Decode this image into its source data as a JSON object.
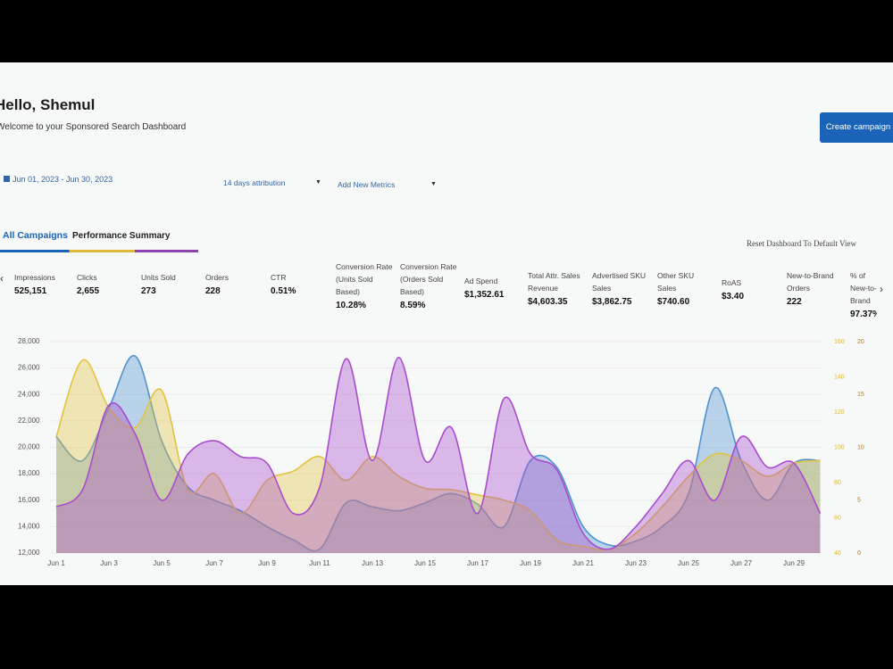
{
  "header": {
    "greeting": "Hello, Shemul",
    "subtitle": "Welcome to your Sponsored Search Dashboard",
    "button": "Create campaign"
  },
  "filters": {
    "date_range": "Jun 01, 2023 - Jun 30, 2023",
    "attribution": "14 days attribution",
    "add_metrics": "Add New Metrics"
  },
  "tabs": {
    "all_campaigns": "All Campaigns",
    "performance_summary": "Performance Summary",
    "reset": "Reset Dashboard To Default View"
  },
  "metrics": [
    {
      "label": "Impressions",
      "value": "525,151"
    },
    {
      "label": "Clicks",
      "value": "2,655"
    },
    {
      "label": "Units Sold",
      "value": "273"
    },
    {
      "label": "Orders",
      "value": "228"
    },
    {
      "label": "CTR",
      "value": "0.51%"
    },
    {
      "label": "Conversion Rate (Units Sold Based)",
      "value": "10.28%"
    },
    {
      "label": "Conversion Rate (Orders Sold Based)",
      "value": "8.59%"
    },
    {
      "label": "Ad Spend",
      "value": "$1,352.61"
    },
    {
      "label": "Total Attr. Sales Revenue",
      "value": "$4,603.35"
    },
    {
      "label": "Advertised SKU Sales",
      "value": "$3,862.75"
    },
    {
      "label": "Other SKU Sales",
      "value": "$740.60"
    },
    {
      "label": "RoAS",
      "value": "$3.40"
    },
    {
      "label": "New-to-Brand Orders",
      "value": "222"
    },
    {
      "label": "% of New-to-Brand",
      "value": "97.37%"
    }
  ],
  "chart_data": {
    "type": "area",
    "categories": [
      "Jun 1",
      null,
      "Jun 3",
      null,
      "Jun 5",
      null,
      "Jun 7",
      null,
      "Jun 9",
      null,
      "Jun 11",
      null,
      "Jun 13",
      null,
      "Jun 15",
      null,
      "Jun 17",
      null,
      "Jun 19",
      null,
      "Jun 21",
      null,
      "Jun 23",
      null,
      "Jun 25",
      null,
      "Jun 27",
      null,
      "Jun 29",
      null
    ],
    "ylim": [
      12000,
      28000
    ],
    "yticks": [
      {
        "value": 12000,
        "label": "12,000"
      },
      {
        "value": 14000,
        "label": "14,000"
      },
      {
        "value": 16000,
        "label": "16,000"
      },
      {
        "value": 18000,
        "label": "18,000"
      },
      {
        "value": 20000,
        "label": "20,000"
      },
      {
        "value": 22000,
        "label": "22,000"
      },
      {
        "value": 24000,
        "label": "24,000"
      },
      {
        "value": 26000,
        "label": "26,000"
      },
      {
        "value": 28000,
        "label": "28,000"
      }
    ],
    "y2lim": [
      40,
      160
    ],
    "y2ticks": [
      40,
      60,
      80,
      100,
      120,
      140,
      160
    ],
    "y3lim": [
      0,
      20
    ],
    "y3ticks": [
      0,
      5,
      10,
      15,
      20
    ],
    "series": [
      {
        "color": "#4f93cf",
        "values": [
          20800,
          19000,
          23000,
          26900,
          20500,
          17000,
          16000,
          15200,
          14000,
          13000,
          12300,
          15800,
          15500,
          15200,
          15800,
          16500,
          15700,
          14000,
          19000,
          18500,
          14000,
          12600,
          12900,
          14000,
          16500,
          24500,
          19000,
          16000,
          18800,
          19000
        ]
      },
      {
        "color": "#e3c341",
        "values": [
          20800,
          26600,
          23000,
          21500,
          24300,
          16800,
          18000,
          15000,
          17500,
          18200,
          19300,
          17500,
          19300,
          17800,
          16900,
          16800,
          16400,
          16000,
          15200,
          13000,
          12500,
          12300,
          13500,
          15500,
          17800,
          19500,
          19000,
          17800,
          18800,
          19000
        ]
      },
      {
        "color": "#a94ccc",
        "values": [
          15500,
          16800,
          23200,
          21000,
          16000,
          19500,
          20500,
          19300,
          18800,
          15000,
          17000,
          26700,
          19000,
          26800,
          19000,
          21500,
          15000,
          23700,
          19500,
          18300,
          13500,
          12300,
          14000,
          16500,
          19000,
          16000,
          20800,
          18500,
          18800,
          15000
        ]
      }
    ]
  }
}
